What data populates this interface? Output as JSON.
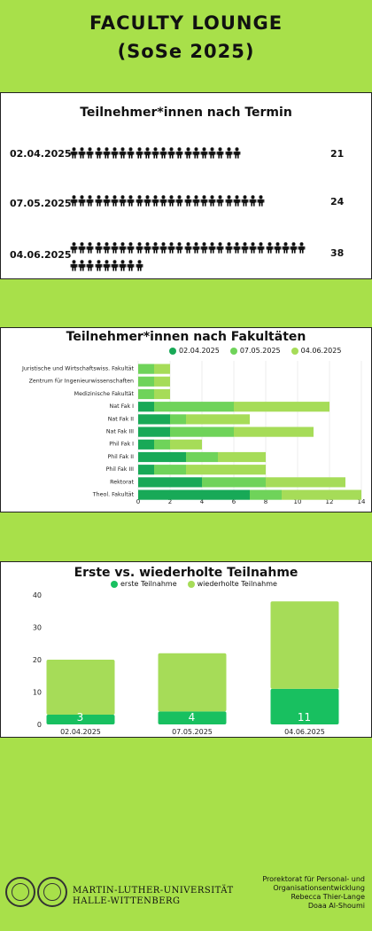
{
  "header": {
    "line1": "FACULTY LOUNGE",
    "line2": "(SoSe 2025)"
  },
  "participants_by_date": {
    "title": "Teilnehmer*innen nach Termin",
    "icon": "person-icon",
    "rows": [
      {
        "date": "02.04.2025",
        "value": 21
      },
      {
        "date": "07.05.2025",
        "value": 24
      },
      {
        "date": "04.06.2025",
        "value": 38
      }
    ]
  },
  "chart_data": [
    {
      "type": "bar",
      "orientation": "horizontal",
      "stacked": true,
      "title": "Teilnehmer*innen nach Fakultäten",
      "categories": [
        "Juristische und Wirtschaftswiss. Fakultät",
        "Zentrum für Ingenieurwissenschaften",
        "Medizinische Fakultät",
        "Nat Fak I",
        "Nat Fak II",
        "Nat Fak III",
        "Phil Fak I",
        "Phil Fak II",
        "Phil Fak III",
        "Rektorat",
        "Theol. Fakultät"
      ],
      "series": [
        {
          "name": "02.04.2025",
          "color": "#18a957",
          "values": [
            0,
            0,
            0,
            1,
            2,
            2,
            1,
            3,
            1,
            4,
            7
          ]
        },
        {
          "name": "07.05.2025",
          "color": "#6fd35a",
          "values": [
            1,
            1,
            1,
            5,
            1,
            4,
            1,
            2,
            2,
            4,
            2
          ]
        },
        {
          "name": "04.06.2025",
          "color": "#a6dc58",
          "values": [
            1,
            1,
            1,
            6,
            4,
            5,
            2,
            3,
            5,
            5,
            5
          ]
        }
      ],
      "xlim": [
        0,
        14
      ],
      "xticks": [
        0,
        2,
        4,
        6,
        8,
        10,
        12,
        14
      ],
      "legend": "top"
    },
    {
      "type": "bar",
      "stacked": true,
      "title": "Erste vs. wiederholte Teilnahme",
      "categories": [
        "02.04.2025",
        "07.05.2025",
        "04.06.2025"
      ],
      "series": [
        {
          "name": "erste Teilnahme",
          "color": "#18c060",
          "values": [
            3,
            4,
            11
          ]
        },
        {
          "name": "wiederholte Teilnahme",
          "color": "#a6dc58",
          "values": [
            17,
            18,
            27
          ]
        }
      ],
      "data_labels": [
        "3",
        "4",
        "11"
      ],
      "ylim": [
        0,
        40
      ],
      "yticks": [
        0,
        10,
        20,
        30,
        40
      ],
      "legend": "top"
    }
  ],
  "footer": {
    "university_line1": "MARTIN-LUTHER-UNIVERSITÄT",
    "university_line2": "HALLE-WITTENBERG",
    "dept_line1": "Prorektorat für Personal- und",
    "dept_line2": "Organisationsentwicklung",
    "person1": "Rebecca Thier-Lange",
    "person2": "Doaa Al-Shoumi"
  }
}
